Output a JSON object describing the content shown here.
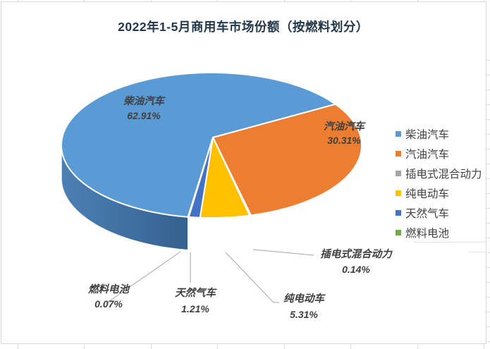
{
  "chart_data": {
    "type": "pie",
    "projection": "3d",
    "title": "2022年1-5月商用车市场份额（按燃料划分）",
    "unit": "%",
    "rotation_deg": 189,
    "legend_position": "right",
    "data_labels": "category name + percent value, outside labels use leader lines",
    "series": [
      {
        "id": "diesel",
        "label": "柴油汽车",
        "value": 62.91,
        "color": "#5B9BD5",
        "side_from": "#4C80B4",
        "side_to": "#35608F"
      },
      {
        "id": "gasoline",
        "label": "汽油汽车",
        "value": 30.31,
        "color": "#ED7D31",
        "side_from": "#8A4715",
        "side_to": "#5D2D0D"
      },
      {
        "id": "phev",
        "label": "插电式混合动力",
        "value": 0.14,
        "color": "#A5A5A5",
        "side_from": "#6E6E6E",
        "side_to": "#6E6E6E"
      },
      {
        "id": "bev",
        "label": "纯电动车",
        "value": 5.31,
        "color": "#FFC000",
        "side_from": "#7D5E00",
        "side_to": "#6E5300"
      },
      {
        "id": "cng",
        "label": "天然气车",
        "value": 1.21,
        "color": "#4472C4",
        "side_from": "#26406B",
        "side_to": "#26406B"
      },
      {
        "id": "fuel-cell",
        "label": "燃料电池",
        "value": 0.07,
        "color": "#70AD47",
        "side_from": "#375623",
        "side_to": "#375623"
      }
    ],
    "colors_meaning": {
      "title_text": "#22384a",
      "label_text": "#3f3f3f",
      "legend_text": "#404040",
      "leader_line": "#A6A6A6",
      "worksheet_gridline": "#d3dae2"
    }
  }
}
